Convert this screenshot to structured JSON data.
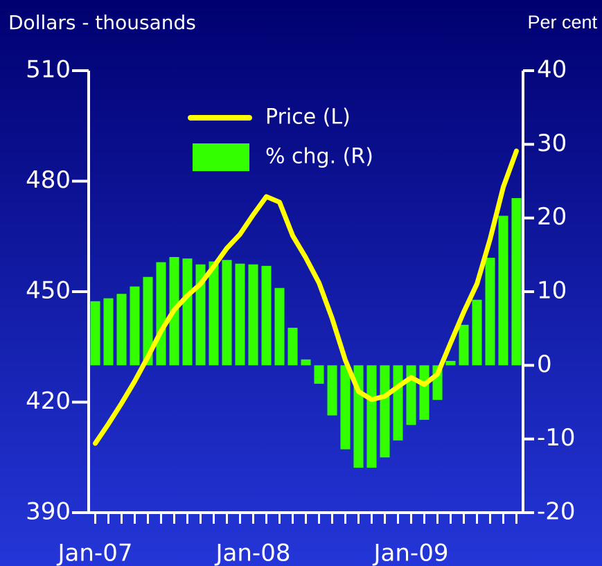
{
  "chart_data": {
    "type": "combo",
    "y_label": "Dollars - thousands",
    "y2_label": "Per cent",
    "categories": [
      "Jan-07",
      null,
      null,
      null,
      null,
      null,
      null,
      null,
      null,
      null,
      null,
      null,
      "Jan-08",
      null,
      null,
      null,
      null,
      null,
      null,
      null,
      null,
      null,
      null,
      null,
      "Jan-09",
      null,
      null,
      null,
      null,
      null,
      null,
      null,
      null
    ],
    "series": [
      {
        "name": "Price (L)",
        "type": "line",
        "color": "#ffff00",
        "axis": "y",
        "values": [
          408.8,
          414.1,
          419.7,
          425.7,
          432.3,
          439.3,
          445.1,
          448.9,
          452.1,
          456.8,
          461.8,
          465.6,
          470.9,
          475.8,
          474.3,
          465.2,
          459.2,
          452.4,
          442.7,
          431.4,
          422.9,
          420.7,
          421.6,
          424.2,
          426.7,
          424.8,
          427.6,
          436.1,
          444.5,
          452.1,
          464.3,
          478.4,
          488.2
        ]
      },
      {
        "name": "% chg. (R)",
        "type": "bar",
        "color": "#33ff00",
        "axis": "y2",
        "values": [
          8.7,
          9.1,
          9.7,
          10.7,
          12.0,
          14.0,
          14.7,
          14.5,
          13.7,
          14.1,
          14.3,
          13.8,
          13.7,
          13.5,
          10.5,
          5.1,
          0.8,
          -2.5,
          -6.8,
          -11.4,
          -13.9,
          -13.9,
          -12.5,
          -10.2,
          -8.1,
          -7.4,
          -4.7,
          0.6,
          5.5,
          8.9,
          14.6,
          20.3,
          22.7
        ]
      }
    ],
    "ylim": [
      390,
      510
    ],
    "yticks": [
      390,
      420,
      450,
      480,
      510
    ],
    "y2lim": [
      -20,
      40
    ],
    "y2ticks": [
      -20,
      -10,
      0,
      10,
      20,
      30,
      40
    ],
    "legend": "upper left",
    "grid": false
  }
}
